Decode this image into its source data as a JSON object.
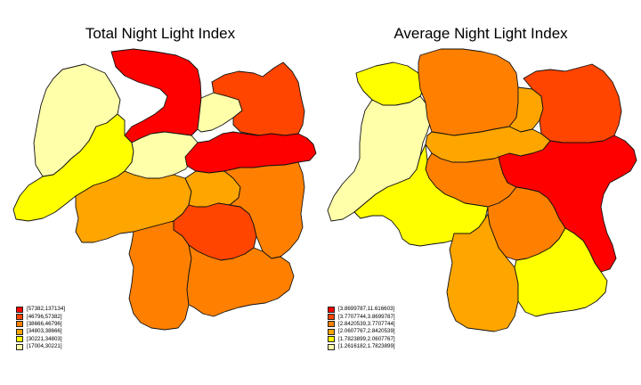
{
  "colors": {
    "c1": "#ffff00",
    "c2": "#ffffaa",
    "c3": "#ffd700",
    "c4": "#ffa500",
    "c5": "#ff8000",
    "c6": "#ff4500",
    "c7": "#ff0000",
    "pale": "#ffffbb"
  },
  "maps": [
    {
      "title": "Total Night Light Index",
      "legend": [
        {
          "label": "[57382,137134]",
          "color": "#ff0000"
        },
        {
          "label": "[46796,57382]",
          "color": "#ff4500"
        },
        {
          "label": "[38666,46796]",
          "color": "#ff8000"
        },
        {
          "label": "[34803,38666]",
          "color": "#ffa500"
        },
        {
          "label": "[30221,34803]",
          "color": "#ffff00"
        },
        {
          "label": "[17004,30221]",
          "color": "#ffffaa"
        }
      ]
    },
    {
      "title": "Average Night Light Index",
      "legend": [
        {
          "label": "[3.8699787,11.616603]",
          "color": "#ff0000"
        },
        {
          "label": "[3.7707744,3.8699787]",
          "color": "#ff4500"
        },
        {
          "label": "[2.8420539,3.7707744]",
          "color": "#ff8000"
        },
        {
          "label": "[2.0607767,2.8420539]",
          "color": "#ffa500"
        },
        {
          "label": "[1.7823899,2.0607767]",
          "color": "#ffff00"
        },
        {
          "label": "[1.2616182,1.7823899]",
          "color": "#ffffaa"
        }
      ]
    }
  ]
}
